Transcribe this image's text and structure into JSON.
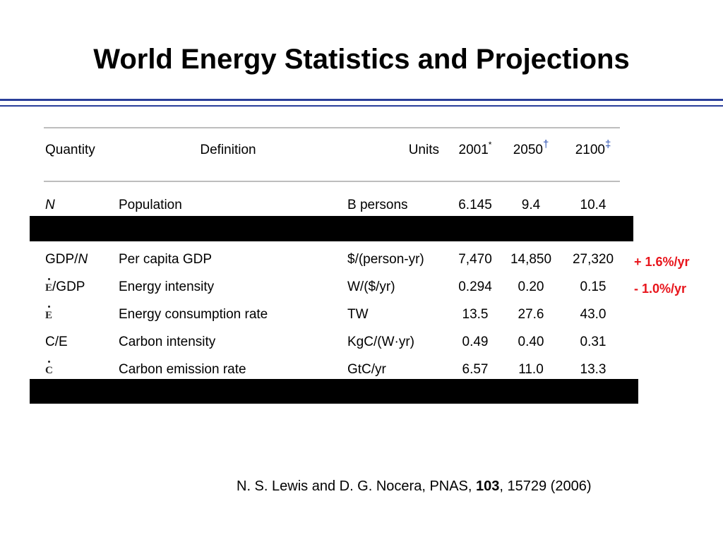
{
  "slide": {
    "title": "World Energy Statistics and Projections"
  },
  "table": {
    "headers": {
      "quantity": "Quantity",
      "definition": "Definition",
      "units": "Units",
      "y2001": "2001",
      "y2001_mark": "*",
      "y2050": "2050",
      "y2050_mark": "†",
      "y2100": "2100",
      "y2100_mark": "‡"
    },
    "rows": [
      {
        "quantity": "N",
        "definition": "Population",
        "units": "B persons",
        "v2001": "6.145",
        "v2050": "9.4",
        "v2100": "10.4"
      },
      {
        "quantity": "GDP/N",
        "quantity_prefix": "GDP/",
        "quantity_var": "N",
        "definition": "Per capita GDP",
        "units": "$/(person-yr)",
        "v2001": "7,470",
        "v2050": "14,850",
        "v2100": "27,320"
      },
      {
        "quantity_symbol": "E",
        "quantity_suffix": "/GDP",
        "definition": "Energy intensity",
        "units": "W/($/yr)",
        "v2001": "0.294",
        "v2050": "0.20",
        "v2100": "0.15"
      },
      {
        "quantity_symbol": "E",
        "definition": "Energy consumption rate",
        "units": "TW",
        "v2001": "13.5",
        "v2050": "27.6",
        "v2100": "43.0"
      },
      {
        "quantity": "C/E",
        "definition": "Carbon intensity",
        "units": "KgC/(W·yr)",
        "v2001": "0.49",
        "v2050": "0.40",
        "v2100": "0.31"
      },
      {
        "quantity_symbol": "C",
        "definition": "Carbon emission rate",
        "units": "GtC/yr",
        "v2001": "6.57",
        "v2050": "11.0",
        "v2100": "13.3"
      }
    ]
  },
  "annotations": {
    "gdp_growth": "+ 1.6%/yr",
    "intensity_change": "- 1.0%/yr"
  },
  "citation": {
    "prefix": "N. S. Lewis and D. G. Nocera, PNAS, ",
    "volume": "103",
    "suffix": ", 15729 (2006)"
  },
  "colors": {
    "title_rule": "#2a3f9a",
    "annotation": "#e8141b",
    "table_rule": "#bdbdbd",
    "redaction": "#000000"
  }
}
